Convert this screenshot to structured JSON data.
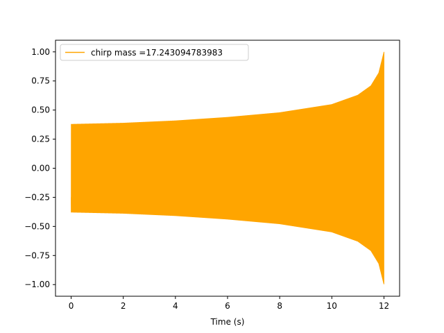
{
  "chart_data": {
    "type": "line",
    "title": "",
    "xlabel": "Time (s)",
    "ylabel": "",
    "xlim": [
      -0.6,
      12.6
    ],
    "ylim": [
      -1.1,
      1.1
    ],
    "xticks": [
      0,
      2,
      4,
      6,
      8,
      10,
      12
    ],
    "xtick_labels": [
      "0",
      "2",
      "4",
      "6",
      "8",
      "10",
      "12"
    ],
    "yticks": [
      -1.0,
      -0.75,
      -0.5,
      -0.25,
      0.0,
      0.25,
      0.5,
      0.75,
      1.0
    ],
    "ytick_labels": [
      "−1.00",
      "−0.75",
      "−0.50",
      "−0.25",
      "0.00",
      "0.25",
      "0.50",
      "0.75",
      "1.00"
    ],
    "grid": false,
    "legend_position": "upper-left",
    "series": [
      {
        "name": "chirp mass =17.243094783983",
        "color": "#ffa500",
        "x": [
          0,
          2,
          4,
          6,
          8,
          10,
          11,
          11.5,
          11.8,
          12.0
        ],
        "envelope_amplitude": [
          0.38,
          0.39,
          0.41,
          0.44,
          0.48,
          0.55,
          0.63,
          0.71,
          0.82,
          1.0
        ]
      }
    ]
  }
}
